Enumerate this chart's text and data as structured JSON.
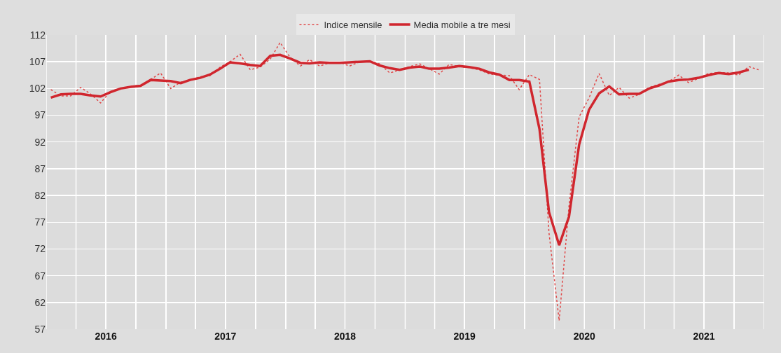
{
  "chart_data": {
    "type": "line",
    "x": [
      "2016-01-15",
      "2016-02-15",
      "2016-03-15",
      "2016-04-15",
      "2016-05-15",
      "2016-06-15",
      "2016-07-15",
      "2016-08-15",
      "2016-09-15",
      "2016-10-15",
      "2016-11-15",
      "2016-12-15",
      "2017-01-15",
      "2017-02-15",
      "2017-03-15",
      "2017-04-15",
      "2017-05-15",
      "2017-06-15",
      "2017-07-15",
      "2017-08-15",
      "2017-09-15",
      "2017-10-15",
      "2017-11-15",
      "2017-12-15",
      "2018-01-15",
      "2018-02-15",
      "2018-03-15",
      "2018-04-15",
      "2018-05-15",
      "2018-06-15",
      "2018-07-15",
      "2018-08-15",
      "2018-09-15",
      "2018-10-15",
      "2018-11-15",
      "2018-12-15",
      "2019-01-15",
      "2019-02-15",
      "2019-03-15",
      "2019-04-15",
      "2019-05-15",
      "2019-06-15",
      "2019-07-15",
      "2019-08-15",
      "2019-09-15",
      "2019-10-15",
      "2019-11-15",
      "2019-12-15",
      "2020-01-15",
      "2020-02-15",
      "2020-03-15",
      "2020-04-15",
      "2020-05-15",
      "2020-06-15",
      "2020-07-15",
      "2020-08-15",
      "2020-09-15",
      "2020-10-15",
      "2020-11-15",
      "2020-12-15",
      "2021-01-15",
      "2021-02-15",
      "2021-03-15",
      "2021-04-15",
      "2021-05-15",
      "2021-06-15",
      "2021-07-15",
      "2021-08-15",
      "2021-09-15",
      "2021-10-15",
      "2021-11-15",
      "2021-12-15"
    ],
    "series": [
      {
        "name": "Indice mensile",
        "color": "#e04848",
        "line_style": "dotted",
        "values": [
          101.8,
          100.6,
          100.6,
          102.2,
          101.0,
          99.3,
          101.5,
          102.0,
          102.4,
          102.6,
          103.7,
          104.9,
          102.0,
          103.2,
          103.5,
          104.2,
          104.4,
          106.0,
          107.0,
          108.4,
          105.5,
          106.0,
          107.5,
          110.6,
          107.8,
          106.2,
          107.4,
          106.2,
          106.8,
          106.9,
          106.2,
          107.0,
          107.1,
          106.6,
          104.9,
          105.5,
          106.1,
          106.6,
          105.7,
          104.7,
          106.5,
          106.1,
          105.9,
          105.5,
          104.7,
          104.5,
          104.4,
          101.8,
          104.6,
          103.7,
          75.0,
          58.6,
          80.0,
          96.7,
          100.2,
          104.8,
          100.7,
          102.2,
          100.2,
          100.9,
          102.2,
          102.8,
          103.3,
          104.5,
          103.1,
          103.9,
          104.8,
          105.0,
          104.9,
          104.5,
          106.1,
          105.5
        ]
      },
      {
        "name": "Media mobile a tre mesi",
        "color": "#d0262e",
        "line_style": "solid",
        "values": [
          100.3,
          100.9,
          101.0,
          101.0,
          100.7,
          100.5,
          101.3,
          102.0,
          102.3,
          102.5,
          103.6,
          103.5,
          103.4,
          103.0,
          103.6,
          104.0,
          104.6,
          105.7,
          106.9,
          106.7,
          106.4,
          106.2,
          108.1,
          108.3,
          107.6,
          106.8,
          106.7,
          106.9,
          106.8,
          106.8,
          106.9,
          107.0,
          107.1,
          106.3,
          105.8,
          105.5,
          105.9,
          106.1,
          105.7,
          105.7,
          105.9,
          106.2,
          106.0,
          105.7,
          105.0,
          104.6,
          103.6,
          103.6,
          103.3,
          94.4,
          78.9,
          72.7,
          78.0,
          91.5,
          98.0,
          101.1,
          102.4,
          100.9,
          101.0,
          101.0,
          102.0,
          102.6,
          103.3,
          103.6,
          103.7,
          104.0,
          104.5,
          104.9,
          104.7,
          105.0,
          105.5,
          null
        ]
      }
    ],
    "xlim": [
      "2016-01-01",
      "2022-01-01"
    ],
    "xticks": [
      {
        "value": "2016-01-01",
        "label": null
      },
      {
        "value": "2016-04-01",
        "label": null
      },
      {
        "value": "2016-07-01",
        "label": "2016"
      },
      {
        "value": "2016-10-01",
        "label": null
      },
      {
        "value": "2017-01-01",
        "label": null
      },
      {
        "value": "2017-04-01",
        "label": null
      },
      {
        "value": "2017-07-01",
        "label": "2017"
      },
      {
        "value": "2017-10-01",
        "label": null
      },
      {
        "value": "2018-01-01",
        "label": null
      },
      {
        "value": "2018-04-01",
        "label": null
      },
      {
        "value": "2018-07-01",
        "label": "2018"
      },
      {
        "value": "2018-10-01",
        "label": null
      },
      {
        "value": "2019-01-01",
        "label": null
      },
      {
        "value": "2019-04-01",
        "label": null
      },
      {
        "value": "2019-07-01",
        "label": "2019"
      },
      {
        "value": "2019-10-01",
        "label": null
      },
      {
        "value": "2020-01-01",
        "label": null
      },
      {
        "value": "2020-04-01",
        "label": null
      },
      {
        "value": "2020-07-01",
        "label": "2020"
      },
      {
        "value": "2020-10-01",
        "label": null
      },
      {
        "value": "2021-01-01",
        "label": null
      },
      {
        "value": "2021-04-01",
        "label": null
      },
      {
        "value": "2021-07-01",
        "label": "2021"
      },
      {
        "value": "2021-10-01",
        "label": null
      },
      {
        "value": "2022-01-01",
        "label": null
      }
    ],
    "ylim": [
      57,
      112
    ],
    "yticks": [
      57,
      62,
      67,
      72,
      77,
      82,
      87,
      92,
      97,
      102,
      107,
      112
    ],
    "grid": true,
    "legend": "top"
  }
}
